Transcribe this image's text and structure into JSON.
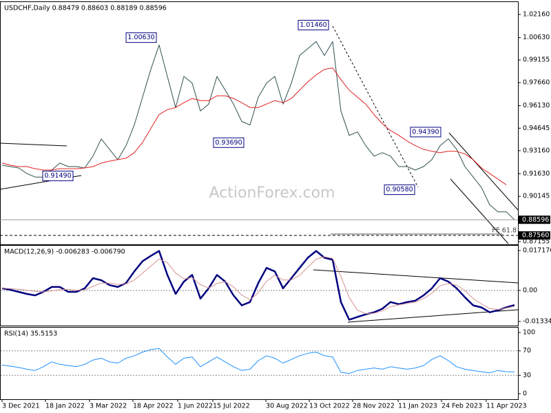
{
  "watermark": "ActionForex.com",
  "chart_data": [
    {
      "type": "line",
      "title": "USDCHF,Daily  0.88479 0.88603 0.88189 0.88596",
      "xlim": [
        0,
        62
      ],
      "ylim": [
        0.8697,
        1.0298
      ],
      "yticks": [
        {
          "value": 1.0216,
          "label": "1.02160"
        },
        {
          "value": 1.0063,
          "label": "1.00630"
        },
        {
          "value": 0.99155,
          "label": "0.99155"
        },
        {
          "value": 0.9766,
          "label": "0.97660"
        },
        {
          "value": 0.9613,
          "label": "0.96130"
        },
        {
          "value": 0.94645,
          "label": "0.94645"
        },
        {
          "value": 0.9316,
          "label": "0.93160"
        },
        {
          "value": 0.9163,
          "label": "0.91630"
        },
        {
          "value": 0.90145,
          "label": "0.90145"
        },
        {
          "value": 0.87155,
          "label": "0.87155"
        }
      ],
      "series": [
        {
          "color": "#2f4f4f",
          "values": [
            0.922,
            0.9211,
            0.9202,
            0.9165,
            0.9142,
            0.9142,
            0.9188,
            0.9234,
            0.9211,
            0.9211,
            0.9202,
            0.928,
            0.9394,
            0.9325,
            0.9257,
            0.9349,
            0.9486,
            0.967,
            0.9853,
            1.0014,
            0.9807,
            0.9601,
            0.9807,
            0.9762,
            0.9578,
            0.9624,
            0.9807,
            0.9716,
            0.9624,
            0.9509,
            0.9486,
            0.967,
            0.9762,
            0.9807,
            0.9624,
            0.9762,
            0.9945,
            0.9991,
            1.0037,
            0.9945,
            1.0037,
            0.9578,
            0.9417,
            0.944,
            0.9349,
            0.928,
            0.9303,
            0.928,
            0.9211,
            0.9211,
            0.9188,
            0.9211,
            0.9257,
            0.9349,
            0.9394,
            0.9325,
            0.9211,
            0.9142,
            0.9073,
            0.8958,
            0.8912,
            0.8912,
            0.886
          ]
        },
        {
          "color": "#e02020",
          "values": [
            0.9234,
            0.922,
            0.9211,
            0.9211,
            0.9197,
            0.9188,
            0.9188,
            0.9197,
            0.9197,
            0.9197,
            0.9202,
            0.9211,
            0.9234,
            0.9247,
            0.9257,
            0.9266,
            0.9303,
            0.9371,
            0.9463,
            0.9555,
            0.9587,
            0.9601,
            0.9633,
            0.9661,
            0.9647,
            0.9647,
            0.9679,
            0.9679,
            0.9661,
            0.9633,
            0.9601,
            0.9601,
            0.9624,
            0.9647,
            0.9633,
            0.9661,
            0.9716,
            0.9771,
            0.9817,
            0.9853,
            0.9863,
            0.9785,
            0.9716,
            0.967,
            0.9624,
            0.9555,
            0.9495,
            0.9449,
            0.9417,
            0.938,
            0.9349,
            0.9325,
            0.9312,
            0.9303,
            0.9312,
            0.9312,
            0.9294,
            0.9257,
            0.9202,
            0.9165,
            0.9128,
            0.9091,
            null
          ]
        }
      ],
      "levels": [
        {
          "value": 0.88596,
          "label": "0.88596",
          "dashed": false
        },
        {
          "value": 0.8756,
          "label": "0.87560",
          "dashed": true
        }
      ],
      "fe_label": "FE 61.8",
      "annotations": [
        {
          "x": 18.92,
          "value": 1.0063,
          "label": "1.00630"
        },
        {
          "x": 39.75,
          "value": 1.0146,
          "label": "1.01460"
        },
        {
          "x": 29.5,
          "value": 0.9369,
          "label": "0.93690"
        },
        {
          "x": 4.75,
          "value": 0.9149,
          "label": "0.91490"
        },
        {
          "x": 53.33,
          "value": 0.9439,
          "label": "0.94390"
        },
        {
          "x": 50.17,
          "value": 0.9058,
          "label": "0.90580"
        }
      ]
    },
    {
      "type": "line",
      "title": "MACD(12,26,9) -0.006283 -0.006790",
      "xlim": [
        0,
        62
      ],
      "ylim": [
        -0.01512,
        0.01925
      ],
      "yticks": [
        0.017176,
        {
          "value": 0,
          "label": "0.00"
        },
        -0.01334
      ],
      "levels": [
        0
      ],
      "series": [
        {
          "color": "#00007f",
          "width": 2.5,
          "values": [
            0.0009,
            0.0003,
            -0.0006,
            -0.0015,
            -0.0021,
            -0.0006,
            0.0015,
            0.0015,
            -0.0006,
            -0.0006,
            0.0009,
            0.0053,
            0.0044,
            0.0023,
            0.0015,
            0.0032,
            0.0082,
            0.0126,
            0.0149,
            0.017,
            0.0067,
            -0.0015,
            0.0038,
            0.0067,
            -0.0035,
            0.0009,
            0.0067,
            0.0038,
            -0.0021,
            -0.0064,
            -0.005,
            0.0032,
            0.0097,
            0.0082,
            0.0009,
            0.0053,
            0.0097,
            0.0141,
            0.017,
            0.0141,
            0.0132,
            -0.005,
            -0.0126,
            -0.0114,
            -0.0103,
            -0.0094,
            -0.0079,
            -0.005,
            -0.0059,
            -0.005,
            -0.0044,
            -0.0021,
            0.0009,
            0.0053,
            0.0038,
            0.0009,
            -0.0029,
            -0.0064,
            -0.0073,
            -0.0094,
            -0.0085,
            -0.0073,
            -0.0063
          ]
        },
        {
          "color": "#d49090",
          "width": 1,
          "values": [
            0.001,
            0.0008,
            0.0005,
            0.0001,
            -0.0004,
            -0.0006,
            -0.0002,
            0.0004,
            0.0004,
            0.0001,
            0.0002,
            0.0018,
            0.0032,
            0.0032,
            0.0026,
            0.0028,
            0.0045,
            0.0075,
            0.0105,
            0.0135,
            0.012,
            0.0075,
            0.005,
            0.0055,
            0.0025,
            0.001,
            0.003,
            0.0038,
            0.0015,
            -0.002,
            -0.004,
            -0.001,
            0.004,
            0.0065,
            0.0045,
            0.0045,
            0.0065,
            0.01,
            0.0135,
            0.0145,
            0.0138,
            0.006,
            -0.003,
            -0.0085,
            -0.01,
            -0.0098,
            -0.0088,
            -0.007,
            -0.0062,
            -0.0056,
            -0.005,
            -0.0035,
            -0.0012,
            0.002,
            0.003,
            0.0022,
            0.0,
            -0.0035,
            -0.0058,
            -0.0078,
            -0.0082,
            -0.0076,
            -0.0068
          ]
        }
      ]
    },
    {
      "type": "line",
      "title": "RSI(14) 35.5153",
      "xlim": [
        0,
        62
      ],
      "ylim": [
        -9,
        107.9
      ],
      "yticks": [
        100,
        70,
        30,
        0
      ],
      "levels": [
        70,
        30
      ],
      "series": [
        {
          "color": "#1e90ff",
          "width": 1,
          "values": [
            47,
            45,
            43,
            40,
            38,
            44,
            52,
            48,
            46,
            44,
            48,
            55,
            58,
            52,
            50,
            58,
            62,
            68,
            72,
            74,
            60,
            48,
            58,
            60,
            44,
            52,
            60,
            52,
            44,
            38,
            40,
            54,
            62,
            58,
            50,
            56,
            62,
            66,
            68,
            62,
            60,
            35,
            33,
            38,
            40,
            42,
            40,
            44,
            42,
            40,
            42,
            46,
            56,
            62,
            54,
            44,
            40,
            38,
            36,
            34,
            38,
            36,
            35.5
          ]
        }
      ],
      "xticks": [
        {
          "value": 0,
          "label": "3 Dec 2021"
        },
        {
          "value": 5.25,
          "label": "18 Jan 2022"
        },
        {
          "value": 10.58,
          "label": "3 Mar 2022"
        },
        {
          "value": 15.83,
          "label": "18 Apr 2022"
        },
        {
          "value": 21.25,
          "label": "1 Jun 2022"
        },
        {
          "value": 25.5,
          "label": "15 Jul 2022"
        },
        {
          "value": 31.92,
          "label": "30 Aug 2022"
        },
        {
          "value": 37.17,
          "label": "13 Oct 2022"
        },
        {
          "value": 42.42,
          "label": "28 Nov 2022"
        },
        {
          "value": 47.92,
          "label": "11 Jan 2023"
        },
        {
          "value": 53.17,
          "label": "24 Feb 2023"
        },
        {
          "value": 58.58,
          "label": "11 Apr 2023"
        }
      ]
    }
  ]
}
